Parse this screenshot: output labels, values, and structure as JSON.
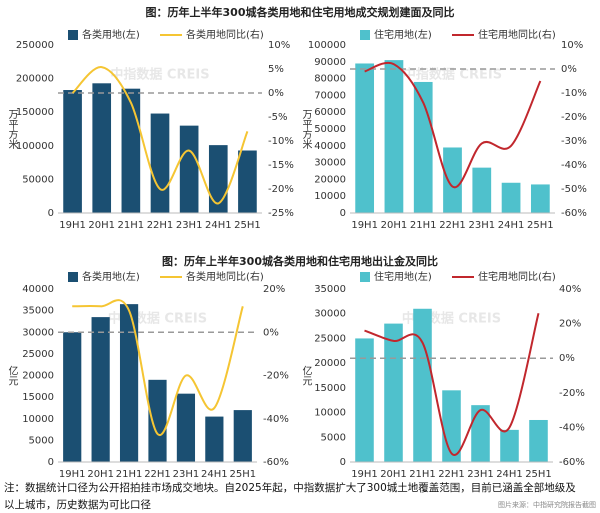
{
  "figure_titles": [
    "图：历年上半年300城各类用地和住宅用地成交规划建面及同比",
    "图：历年上半年300城各类用地和住宅用地出让金及同比"
  ],
  "watermark": "中指数据 CREIS",
  "chart_data": [
    {
      "type": "combo",
      "ylabel": "万平方米",
      "categories": [
        "19H1",
        "20H1",
        "21H1",
        "22H1",
        "23H1",
        "24H1",
        "25H1"
      ],
      "series": [
        {
          "name": "各类用地(左)",
          "color": "#1b4f72",
          "values": [
            183000,
            193000,
            185000,
            148000,
            130000,
            101000,
            93000
          ]
        },
        {
          "name": "各类用地同比(右)",
          "color": "#f5c533",
          "axis": "y2",
          "values": [
            0,
            5.4,
            -2,
            -20,
            -12,
            -23,
            -8
          ]
        }
      ],
      "ylim": [
        0,
        250000
      ],
      "yticks": [
        0,
        50000,
        100000,
        150000,
        200000,
        250000
      ],
      "y2lim": [
        -25,
        10
      ],
      "y2ticks": [
        {
          "value": -25,
          "label": "-25%"
        },
        {
          "value": -20,
          "label": "-20%"
        },
        {
          "value": -15,
          "label": "-15%"
        },
        {
          "value": -10,
          "label": "-10%"
        },
        {
          "value": -5,
          "label": "-5%"
        },
        {
          "value": 0,
          "label": "0%"
        },
        {
          "value": 5,
          "label": "5%"
        },
        {
          "value": 10,
          "label": "10%"
        }
      ],
      "y2_reference_line": 0
    },
    {
      "type": "combo",
      "ylabel": "万平方米",
      "categories": [
        "19H1",
        "20H1",
        "21H1",
        "22H1",
        "23H1",
        "24H1",
        "25H1"
      ],
      "series": [
        {
          "name": "住宅用地(左)",
          "color": "#4fc1cc",
          "values": [
            89000,
            91000,
            78000,
            39000,
            27000,
            18000,
            17000
          ]
        },
        {
          "name": "住宅用地同比(右)",
          "color": "#c1272d",
          "axis": "y2",
          "values": [
            -1,
            2,
            -14,
            -49,
            -31,
            -32,
            -5
          ]
        }
      ],
      "ylim": [
        0,
        100000
      ],
      "yticks": [
        0,
        10000,
        20000,
        30000,
        40000,
        50000,
        60000,
        70000,
        80000,
        90000,
        100000
      ],
      "y2lim": [
        -60,
        10
      ],
      "y2ticks": [
        {
          "value": -60,
          "label": "-60%"
        },
        {
          "value": -50,
          "label": "-50%"
        },
        {
          "value": -40,
          "label": "-40%"
        },
        {
          "value": -30,
          "label": "-30%"
        },
        {
          "value": -20,
          "label": "-20%"
        },
        {
          "value": -10,
          "label": "-10%"
        },
        {
          "value": 0,
          "label": "0%"
        },
        {
          "value": 10,
          "label": "10%"
        }
      ],
      "y2_reference_line": 0
    },
    {
      "type": "combo",
      "ylabel": "亿元",
      "categories": [
        "19H1",
        "20H1",
        "21H1",
        "22H1",
        "23H1",
        "24H1",
        "25H1"
      ],
      "series": [
        {
          "name": "各类用地(左)",
          "color": "#1b4f72",
          "values": [
            30000,
            33500,
            36500,
            19000,
            15800,
            10500,
            12000
          ]
        },
        {
          "name": "各类用地同比(右)",
          "color": "#f5c533",
          "axis": "y2",
          "values": [
            12,
            12,
            10,
            -47,
            -20,
            -35,
            12
          ]
        }
      ],
      "ylim": [
        0,
        40000
      ],
      "yticks": [
        0,
        5000,
        10000,
        15000,
        20000,
        25000,
        30000,
        35000,
        40000
      ],
      "y2lim": [
        -60,
        20
      ],
      "y2ticks": [
        {
          "value": -60,
          "label": "-60%"
        },
        {
          "value": -40,
          "label": "-40%"
        },
        {
          "value": -20,
          "label": "-20%"
        },
        {
          "value": 0,
          "label": "0%"
        },
        {
          "value": 20,
          "label": "20%"
        }
      ],
      "y2_reference_line": 0
    },
    {
      "type": "combo",
      "ylabel": "亿元",
      "categories": [
        "19H1",
        "20H1",
        "21H1",
        "22H1",
        "23H1",
        "24H1",
        "25H1"
      ],
      "series": [
        {
          "name": "住宅用地(左)",
          "color": "#4fc1cc",
          "values": [
            25000,
            28000,
            31000,
            14500,
            11500,
            6500,
            8500
          ]
        },
        {
          "name": "住宅用地同比(右)",
          "color": "#c1272d",
          "axis": "y2",
          "values": [
            16,
            10,
            9,
            -55,
            -30,
            -40,
            26
          ]
        }
      ],
      "ylim": [
        0,
        35000
      ],
      "yticks": [
        0,
        5000,
        10000,
        15000,
        20000,
        25000,
        30000,
        35000
      ],
      "y2lim": [
        -60,
        40
      ],
      "y2ticks": [
        {
          "value": -60,
          "label": "-60%"
        },
        {
          "value": -40,
          "label": "-40%"
        },
        {
          "value": -20,
          "label": "-20%"
        },
        {
          "value": 0,
          "label": "0%"
        },
        {
          "value": 20,
          "label": "20%"
        },
        {
          "value": 40,
          "label": "40%"
        }
      ],
      "y2_reference_line": 0
    }
  ],
  "note": [
    "注：数据统计口径为公开招拍挂市场成交地块。自2025年起，中指数据扩大了300城土地覆盖范围，目前已涵盖全部地级及",
    "以上城市，历史数据为可比口径"
  ],
  "source": "图片来源：中指研究院报告截图"
}
